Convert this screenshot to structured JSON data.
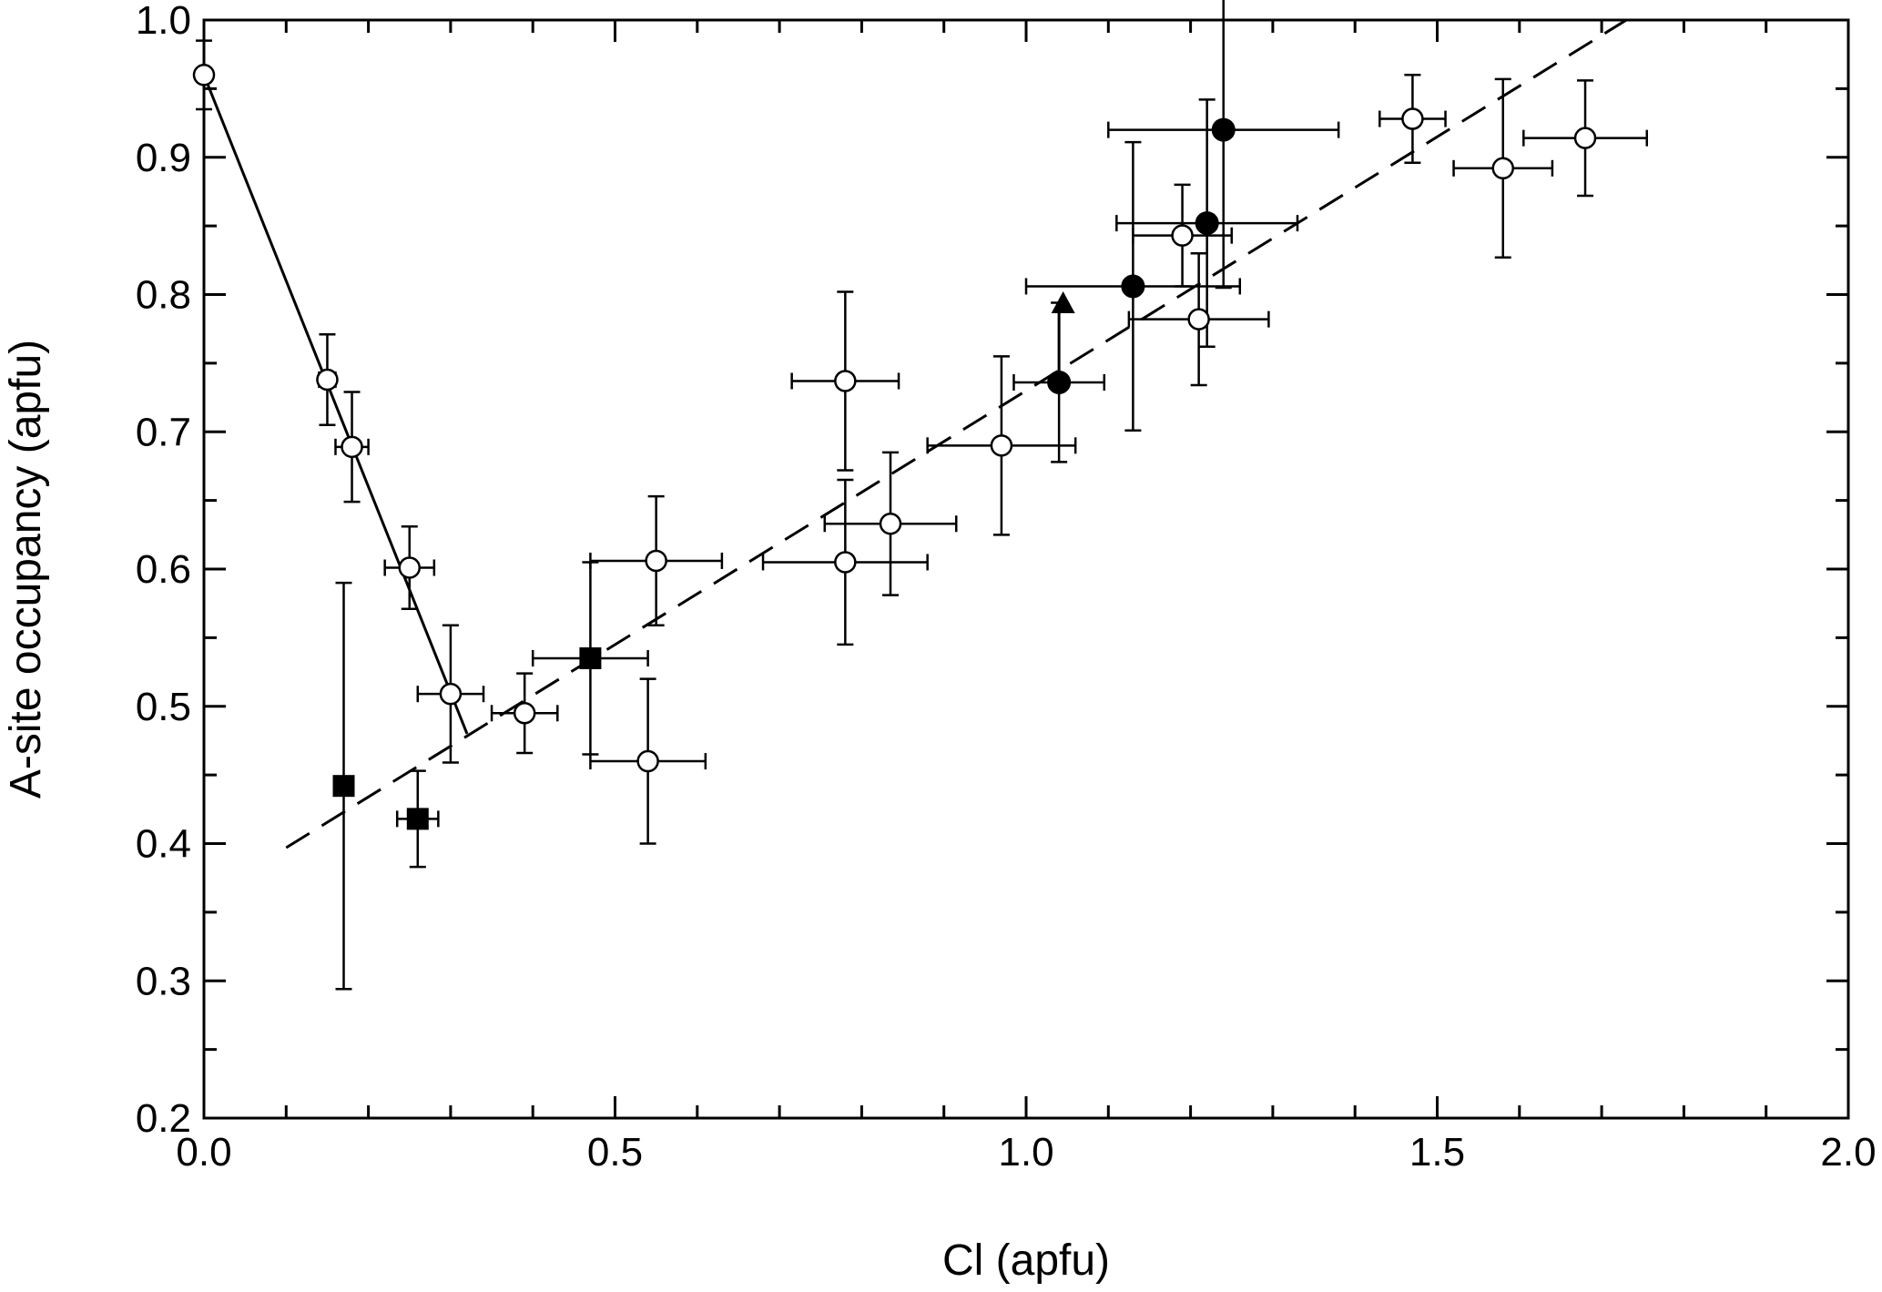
{
  "chart_data": {
    "type": "scatter",
    "title": "",
    "xlabel": "Cl (apfu)",
    "ylabel": "A-site occupancy (apfu)",
    "xlim": [
      0.0,
      2.0
    ],
    "ylim": [
      0.2,
      1.0
    ],
    "x_ticks": [
      0.0,
      0.5,
      1.0,
      1.5,
      2.0
    ],
    "x_tick_labels": [
      "0.0",
      "0.5",
      "1.0",
      "1.5",
      "2.0"
    ],
    "y_ticks": [
      0.2,
      0.3,
      0.4,
      0.5,
      0.6,
      0.7,
      0.8,
      0.9,
      1.0
    ],
    "y_tick_labels": [
      "0.2",
      "0.3",
      "0.4",
      "0.5",
      "0.6",
      "0.7",
      "0.8",
      "0.9",
      "1.0"
    ],
    "x_minor_step": 0.1,
    "y_minor_step": 0.05,
    "grid": false,
    "colors": {
      "axis": "#000000",
      "marker_fill_open": "#ffffff",
      "marker_fill_solid": "#000000"
    },
    "series": [
      {
        "name": "open circles",
        "marker": "circle-open",
        "points": [
          {
            "x": 0.0,
            "y": 0.96,
            "xerr": 0.0,
            "yerr": 0.025
          },
          {
            "x": 0.15,
            "y": 0.738,
            "xerr": 0.01,
            "yerr": 0.033
          },
          {
            "x": 0.18,
            "y": 0.689,
            "xerr": 0.02,
            "yerr": 0.04
          },
          {
            "x": 0.25,
            "y": 0.601,
            "xerr": 0.03,
            "yerr": 0.03
          },
          {
            "x": 0.3,
            "y": 0.509,
            "xerr": 0.04,
            "yerr": 0.05
          },
          {
            "x": 0.39,
            "y": 0.495,
            "xerr": 0.04,
            "yerr": 0.029
          },
          {
            "x": 0.55,
            "y": 0.606,
            "xerr": 0.08,
            "yerr": 0.047
          },
          {
            "x": 0.54,
            "y": 0.46,
            "xerr": 0.07,
            "yerr": 0.06
          },
          {
            "x": 0.78,
            "y": 0.737,
            "xerr": 0.065,
            "yerr": 0.065
          },
          {
            "x": 0.78,
            "y": 0.605,
            "xerr": 0.1,
            "yerr": 0.06
          },
          {
            "x": 0.835,
            "y": 0.633,
            "xerr": 0.08,
            "yerr": 0.052
          },
          {
            "x": 0.97,
            "y": 0.69,
            "xerr": 0.09,
            "yerr": 0.065
          },
          {
            "x": 1.19,
            "y": 0.843,
            "xerr": 0.06,
            "yerr": 0.037
          },
          {
            "x": 1.21,
            "y": 0.782,
            "xerr": 0.085,
            "yerr": 0.048
          },
          {
            "x": 1.47,
            "y": 0.928,
            "xerr": 0.04,
            "yerr": 0.032
          },
          {
            "x": 1.58,
            "y": 0.892,
            "xerr": 0.06,
            "yerr": 0.065
          },
          {
            "x": 1.68,
            "y": 0.914,
            "xerr": 0.075,
            "yerr": 0.042
          }
        ]
      },
      {
        "name": "filled circles",
        "marker": "circle-filled",
        "points": [
          {
            "x": 1.04,
            "y": 0.736,
            "xerr": 0.055,
            "yerr": 0.058
          },
          {
            "x": 1.13,
            "y": 0.806,
            "xerr": 0.13,
            "yerr": 0.105
          },
          {
            "x": 1.22,
            "y": 0.852,
            "xerr": 0.11,
            "yerr": 0.09
          },
          {
            "x": 1.24,
            "y": 0.92,
            "xerr": 0.14,
            "yerr": 0.115
          }
        ]
      },
      {
        "name": "filled squares",
        "marker": "square-filled",
        "points": [
          {
            "x": 0.17,
            "y": 0.442,
            "xerr": 0.01,
            "yerr": 0.148
          },
          {
            "x": 0.26,
            "y": 0.418,
            "xerr": 0.025,
            "yerr": 0.035
          },
          {
            "x": 0.47,
            "y": 0.535,
            "xerr": 0.07,
            "yerr": 0.07
          }
        ]
      },
      {
        "name": "filled triangle",
        "marker": "triangle-filled",
        "points": [
          {
            "x": 1.045,
            "y": 0.793,
            "xerr": 0.0,
            "yerr": 0.0
          }
        ]
      }
    ],
    "lines": [
      {
        "name": "solid fit",
        "style": "solid",
        "points": [
          [
            0.0,
            0.96
          ],
          [
            0.32,
            0.48
          ]
        ]
      },
      {
        "name": "dashed fit",
        "style": "dashed",
        "points": [
          [
            0.1,
            0.397
          ],
          [
            1.73,
            1.0
          ]
        ]
      }
    ],
    "arrows": [
      {
        "from": [
          1.04,
          0.736
        ],
        "to": [
          1.04,
          0.795
        ]
      }
    ]
  }
}
